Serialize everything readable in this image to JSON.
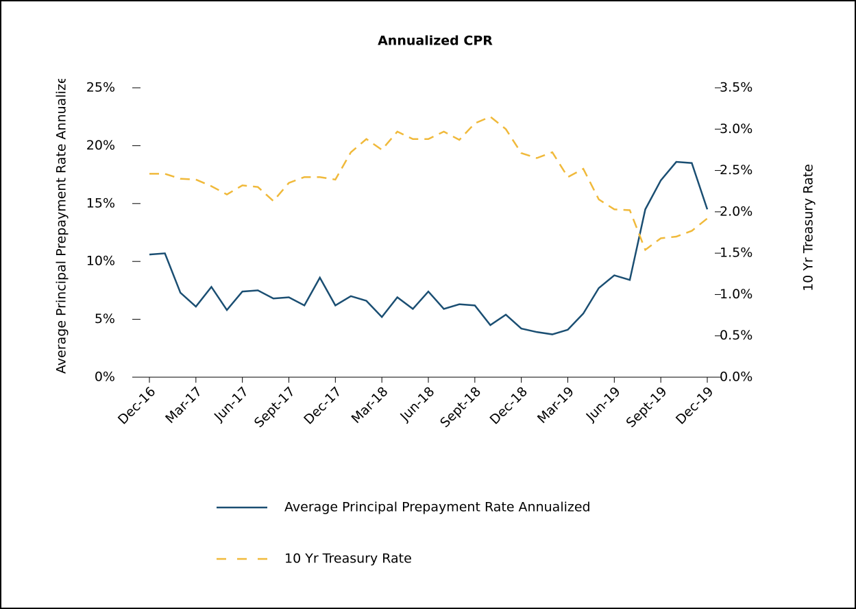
{
  "chart_data": {
    "type": "line",
    "title": "Annualized CPR",
    "y_label": "Average Principal Prepayment Rate Annualized",
    "y2_label": "10 Yr Treasury Rate",
    "categories": [
      "Dec-16",
      null,
      null,
      "Mar-17",
      null,
      null,
      "Jun-17",
      null,
      null,
      "Sept-17",
      null,
      null,
      "Dec-17",
      null,
      null,
      "Mar-18",
      null,
      null,
      "Jun-18",
      null,
      null,
      "Sept-18",
      null,
      null,
      "Dec-18",
      null,
      null,
      "Mar-19",
      null,
      null,
      "Jun-19",
      null,
      null,
      "Sept-19",
      null,
      null,
      "Dec-19"
    ],
    "series": [
      {
        "name": "Average Principal Prepayment Rate Annualized",
        "color": "#1a4e72",
        "dash": false,
        "values": [
          10.6,
          10.7,
          7.3,
          6.1,
          7.8,
          5.8,
          7.4,
          7.5,
          6.8,
          6.9,
          6.2,
          8.6,
          6.2,
          7.0,
          6.6,
          5.2,
          6.9,
          5.9,
          7.4,
          5.9,
          6.3,
          6.2,
          4.5,
          5.4,
          4.2,
          3.9,
          3.7,
          4.1,
          5.5,
          7.7,
          8.8,
          8.4,
          14.5,
          17.0,
          18.6,
          18.5,
          14.5
        ]
      },
      {
        "name": "10 Yr Treasury Rate",
        "color": "#f0b93a",
        "dash": true,
        "axis": "y2",
        "values": [
          2.46,
          2.46,
          2.4,
          2.39,
          2.31,
          2.21,
          2.32,
          2.3,
          2.13,
          2.35,
          2.42,
          2.42,
          2.39,
          2.72,
          2.88,
          2.75,
          2.97,
          2.88,
          2.88,
          2.97,
          2.87,
          3.07,
          3.15,
          3.0,
          2.71,
          2.65,
          2.72,
          2.42,
          2.52,
          2.15,
          2.03,
          2.02,
          1.54,
          1.68,
          1.7,
          1.77,
          1.92
        ]
      }
    ],
    "ylim": [
      0,
      25
    ],
    "yticks": [
      {
        "value": 0,
        "label": "0%"
      },
      {
        "value": 5,
        "label": "5%"
      },
      {
        "value": 10,
        "label": "10%"
      },
      {
        "value": 15,
        "label": "15%"
      },
      {
        "value": 20,
        "label": "20%"
      },
      {
        "value": 25,
        "label": "25%"
      }
    ],
    "y2lim": [
      0,
      3.5
    ],
    "y2ticks": [
      {
        "value": 0,
        "label": "0.0%"
      },
      {
        "value": 0.5,
        "label": "0.5%"
      },
      {
        "value": 1,
        "label": "1.0%"
      },
      {
        "value": 1.5,
        "label": "1.5%"
      },
      {
        "value": 2,
        "label": "2.0%"
      },
      {
        "value": 2.5,
        "label": "2.5%"
      },
      {
        "value": 3,
        "label": "3.0%"
      },
      {
        "value": 3.5,
        "label": "3.5%"
      }
    ],
    "legend": "bottom"
  }
}
